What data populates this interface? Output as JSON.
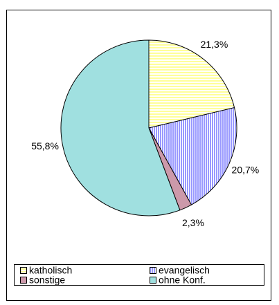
{
  "chart_data": {
    "type": "pie",
    "categories": [
      "katholisch",
      "evangelisch",
      "sonstige",
      "ohne Konf."
    ],
    "values": [
      21.3,
      20.7,
      2.3,
      55.8
    ],
    "value_labels": [
      "21,3%",
      "20,7%",
      "2,3%",
      "55,8%"
    ],
    "colors": [
      "#ffff99",
      "#9999ff",
      "#cc99aa",
      "#a0e0e0"
    ],
    "legend": "bottom"
  }
}
